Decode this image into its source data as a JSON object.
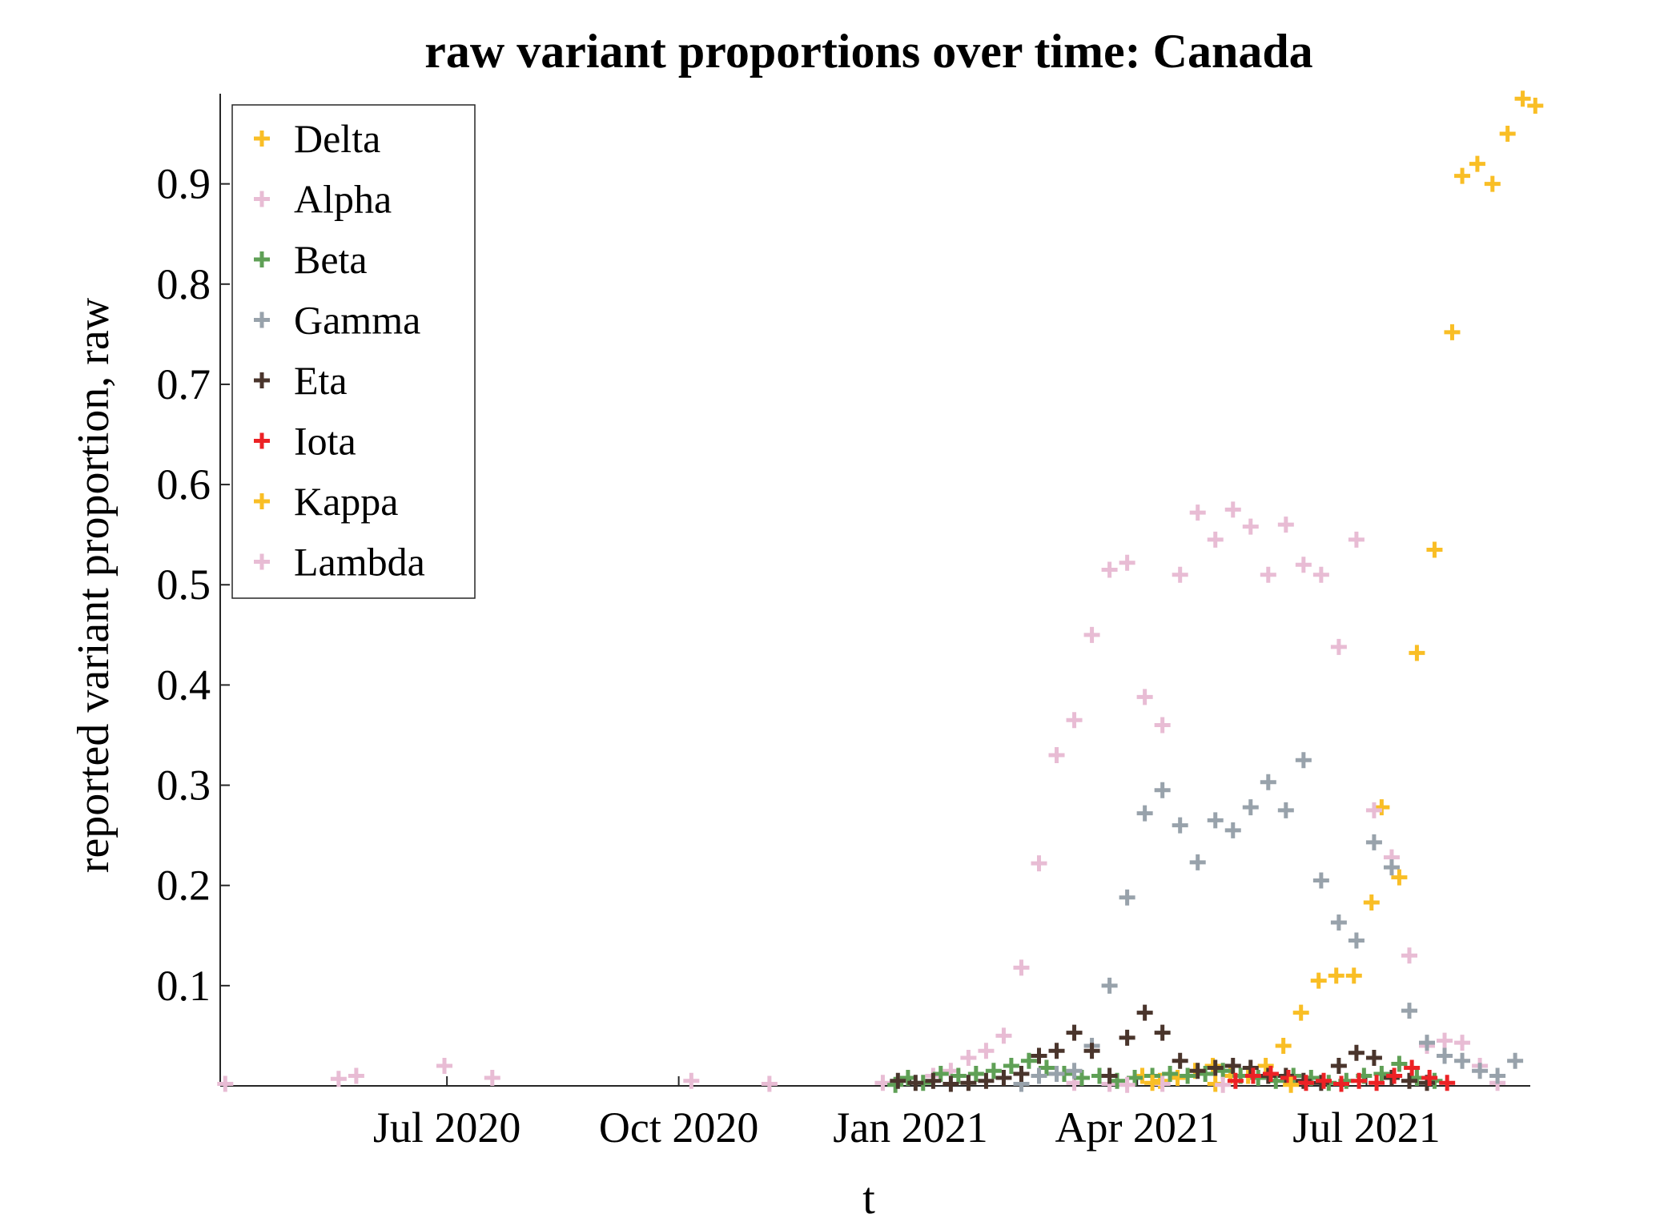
{
  "chart_data": {
    "type": "scatter",
    "title": "raw variant proportions over time: Canada",
    "xlabel": "t",
    "ylabel": "reported variant proportion, raw",
    "x_type": "date",
    "xlim": [
      "2020-04-02",
      "2021-09-04"
    ],
    "ylim": [
      0,
      0.99
    ],
    "xticks": [
      {
        "date": "2020-07-01",
        "label": "Jul 2020"
      },
      {
        "date": "2020-10-01",
        "label": "Oct 2020"
      },
      {
        "date": "2021-01-01",
        "label": "Jan 2021"
      },
      {
        "date": "2021-04-01",
        "label": "Apr 2021"
      },
      {
        "date": "2021-07-01",
        "label": "Jul 2021"
      }
    ],
    "yticks": [
      0.1,
      0.2,
      0.3,
      0.4,
      0.5,
      0.6,
      0.7,
      0.8,
      0.9
    ],
    "ytick_labels": [
      "0.1",
      "0.2",
      "0.3",
      "0.4",
      "0.5",
      "0.6",
      "0.7",
      "0.8",
      "0.9"
    ],
    "marker": "plus",
    "legend_position": "top-left",
    "grid": false,
    "series": [
      {
        "name": "Delta",
        "color": "#F9BE25",
        "points": [
          [
            "2021-04-03",
            0.01
          ],
          [
            "2021-04-10",
            0.005
          ],
          [
            "2021-04-17",
            0.008
          ],
          [
            "2021-04-24",
            0.015
          ],
          [
            "2021-05-01",
            0.02
          ],
          [
            "2021-05-08",
            0.01
          ],
          [
            "2021-05-15",
            0.01
          ],
          [
            "2021-05-22",
            0.02
          ],
          [
            "2021-05-29",
            0.04
          ],
          [
            "2021-06-05",
            0.073
          ],
          [
            "2021-06-12",
            0.105
          ],
          [
            "2021-06-19",
            0.11
          ],
          [
            "2021-06-26",
            0.11
          ],
          [
            "2021-07-03",
            0.183
          ],
          [
            "2021-07-07",
            0.278
          ],
          [
            "2021-07-14",
            0.208
          ],
          [
            "2021-07-21",
            0.432
          ],
          [
            "2021-07-28",
            0.535
          ],
          [
            "2021-08-04",
            0.752
          ],
          [
            "2021-08-08",
            0.908
          ],
          [
            "2021-08-14",
            0.92
          ],
          [
            "2021-08-20",
            0.9
          ],
          [
            "2021-08-26",
            0.95
          ],
          [
            "2021-09-01",
            0.985
          ],
          [
            "2021-09-06",
            0.978
          ]
        ]
      },
      {
        "name": "Alpha",
        "color": "#E8BCD4",
        "points": [
          [
            "2020-04-04",
            0.002
          ],
          [
            "2020-05-19",
            0.007
          ],
          [
            "2020-05-26",
            0.01
          ],
          [
            "2020-06-30",
            0.02
          ],
          [
            "2020-07-19",
            0.008
          ],
          [
            "2020-10-06",
            0.005
          ],
          [
            "2020-11-06",
            0.002
          ],
          [
            "2020-12-21",
            0.003
          ],
          [
            "2021-01-10",
            0.01
          ],
          [
            "2021-01-17",
            0.015
          ],
          [
            "2021-01-24",
            0.028
          ],
          [
            "2021-01-31",
            0.035
          ],
          [
            "2021-02-07",
            0.05
          ],
          [
            "2021-02-14",
            0.118
          ],
          [
            "2021-02-21",
            0.222
          ],
          [
            "2021-02-28",
            0.33
          ],
          [
            "2021-03-07",
            0.365
          ],
          [
            "2021-03-14",
            0.45
          ],
          [
            "2021-03-21",
            0.515
          ],
          [
            "2021-03-28",
            0.522
          ],
          [
            "2021-04-04",
            0.388
          ],
          [
            "2021-04-11",
            0.36
          ],
          [
            "2021-04-18",
            0.51
          ],
          [
            "2021-04-25",
            0.572
          ],
          [
            "2021-05-02",
            0.545
          ],
          [
            "2021-05-09",
            0.575
          ],
          [
            "2021-05-16",
            0.558
          ],
          [
            "2021-05-23",
            0.51
          ],
          [
            "2021-05-30",
            0.56
          ],
          [
            "2021-06-06",
            0.52
          ],
          [
            "2021-06-13",
            0.51
          ],
          [
            "2021-06-20",
            0.438
          ],
          [
            "2021-06-27",
            0.545
          ],
          [
            "2021-07-04",
            0.275
          ],
          [
            "2021-07-11",
            0.228
          ],
          [
            "2021-07-18",
            0.13
          ],
          [
            "2021-07-25",
            0.04
          ],
          [
            "2021-08-01",
            0.045
          ],
          [
            "2021-08-08",
            0.043
          ],
          [
            "2021-08-15",
            0.02
          ],
          [
            "2021-08-22",
            0.003
          ],
          [
            "2021-03-07",
            0.003
          ],
          [
            "2021-03-21",
            0.002
          ],
          [
            "2021-04-11",
            0.002
          ]
        ]
      },
      {
        "name": "Beta",
        "color": "#5FA056",
        "points": [
          [
            "2020-12-26",
            0.001
          ],
          [
            "2020-12-31",
            0.008
          ],
          [
            "2021-01-06",
            0.003
          ],
          [
            "2021-01-13",
            0.012
          ],
          [
            "2021-01-20",
            0.01
          ],
          [
            "2021-01-27",
            0.012
          ],
          [
            "2021-02-03",
            0.015
          ],
          [
            "2021-02-10",
            0.02
          ],
          [
            "2021-02-17",
            0.025
          ],
          [
            "2021-02-24",
            0.018
          ],
          [
            "2021-03-03",
            0.012
          ],
          [
            "2021-03-10",
            0.008
          ],
          [
            "2021-03-17",
            0.01
          ],
          [
            "2021-03-24",
            0.005
          ],
          [
            "2021-03-31",
            0.008
          ],
          [
            "2021-04-07",
            0.01
          ],
          [
            "2021-04-14",
            0.012
          ],
          [
            "2021-04-21",
            0.01
          ],
          [
            "2021-04-28",
            0.012
          ],
          [
            "2021-05-05",
            0.015
          ],
          [
            "2021-05-12",
            0.01
          ],
          [
            "2021-05-19",
            0.008
          ],
          [
            "2021-05-26",
            0.005
          ],
          [
            "2021-06-02",
            0.01
          ],
          [
            "2021-06-09",
            0.008
          ],
          [
            "2021-06-16",
            0.003
          ],
          [
            "2021-06-23",
            0.005
          ],
          [
            "2021-06-30",
            0.01
          ],
          [
            "2021-07-07",
            0.012
          ],
          [
            "2021-07-14",
            0.022
          ],
          [
            "2021-07-21",
            0.008
          ],
          [
            "2021-07-28",
            0.005
          ]
        ]
      },
      {
        "name": "Gamma",
        "color": "#98A2AB",
        "points": [
          [
            "2021-02-14",
            0.002
          ],
          [
            "2021-02-21",
            0.01
          ],
          [
            "2021-02-28",
            0.012
          ],
          [
            "2021-03-07",
            0.015
          ],
          [
            "2021-03-14",
            0.04
          ],
          [
            "2021-03-21",
            0.1
          ],
          [
            "2021-03-28",
            0.188
          ],
          [
            "2021-04-04",
            0.272
          ],
          [
            "2021-04-11",
            0.295
          ],
          [
            "2021-04-18",
            0.26
          ],
          [
            "2021-04-25",
            0.223
          ],
          [
            "2021-05-02",
            0.265
          ],
          [
            "2021-05-09",
            0.255
          ],
          [
            "2021-05-16",
            0.278
          ],
          [
            "2021-05-23",
            0.303
          ],
          [
            "2021-05-30",
            0.275
          ],
          [
            "2021-06-06",
            0.325
          ],
          [
            "2021-06-13",
            0.205
          ],
          [
            "2021-06-20",
            0.163
          ],
          [
            "2021-06-27",
            0.145
          ],
          [
            "2021-07-04",
            0.243
          ],
          [
            "2021-07-11",
            0.218
          ],
          [
            "2021-07-18",
            0.075
          ],
          [
            "2021-07-25",
            0.043
          ],
          [
            "2021-08-01",
            0.03
          ],
          [
            "2021-08-08",
            0.025
          ],
          [
            "2021-08-15",
            0.015
          ],
          [
            "2021-08-22",
            0.01
          ],
          [
            "2021-08-29",
            0.025
          ]
        ]
      },
      {
        "name": "Eta",
        "color": "#4A352C",
        "points": [
          [
            "2020-12-27",
            0.005
          ],
          [
            "2021-01-03",
            0.003
          ],
          [
            "2021-01-10",
            0.005
          ],
          [
            "2021-01-17",
            0.002
          ],
          [
            "2021-01-24",
            0.003
          ],
          [
            "2021-01-31",
            0.005
          ],
          [
            "2021-02-07",
            0.008
          ],
          [
            "2021-02-14",
            0.012
          ],
          [
            "2021-02-21",
            0.03
          ],
          [
            "2021-02-28",
            0.035
          ],
          [
            "2021-03-07",
            0.053
          ],
          [
            "2021-03-14",
            0.035
          ],
          [
            "2021-03-21",
            0.01
          ],
          [
            "2021-03-28",
            0.048
          ],
          [
            "2021-04-04",
            0.073
          ],
          [
            "2021-04-11",
            0.053
          ],
          [
            "2021-04-18",
            0.025
          ],
          [
            "2021-04-25",
            0.015
          ],
          [
            "2021-05-02",
            0.018
          ],
          [
            "2021-05-09",
            0.02
          ],
          [
            "2021-05-16",
            0.018
          ],
          [
            "2021-05-23",
            0.01
          ],
          [
            "2021-05-30",
            0.01
          ],
          [
            "2021-06-06",
            0.005
          ],
          [
            "2021-06-13",
            0.003
          ],
          [
            "2021-06-20",
            0.02
          ],
          [
            "2021-06-27",
            0.033
          ],
          [
            "2021-07-04",
            0.028
          ],
          [
            "2021-07-11",
            0.008
          ],
          [
            "2021-07-18",
            0.005
          ],
          [
            "2021-07-25",
            0.003
          ]
        ]
      },
      {
        "name": "Iota",
        "color": "#EC2225",
        "points": [
          [
            "2021-05-10",
            0.005
          ],
          [
            "2021-05-17",
            0.01
          ],
          [
            "2021-05-24",
            0.012
          ],
          [
            "2021-05-31",
            0.008
          ],
          [
            "2021-06-07",
            0.003
          ],
          [
            "2021-06-14",
            0.005
          ],
          [
            "2021-06-21",
            0.002
          ],
          [
            "2021-06-28",
            0.005
          ],
          [
            "2021-07-05",
            0.003
          ],
          [
            "2021-07-12",
            0.01
          ],
          [
            "2021-07-19",
            0.018
          ],
          [
            "2021-07-26",
            0.008
          ],
          [
            "2021-08-02",
            0.003
          ]
        ]
      },
      {
        "name": "Kappa",
        "color": "#F9BE25",
        "points": [
          [
            "2021-04-07",
            0.003
          ],
          [
            "2021-05-02",
            0.002
          ],
          [
            "2021-06-01",
            0.001
          ]
        ]
      },
      {
        "name": "Lambda",
        "color": "#E8BCD4",
        "points": [
          [
            "2021-03-28",
            0.001
          ],
          [
            "2021-05-05",
            0.001
          ]
        ]
      }
    ]
  }
}
